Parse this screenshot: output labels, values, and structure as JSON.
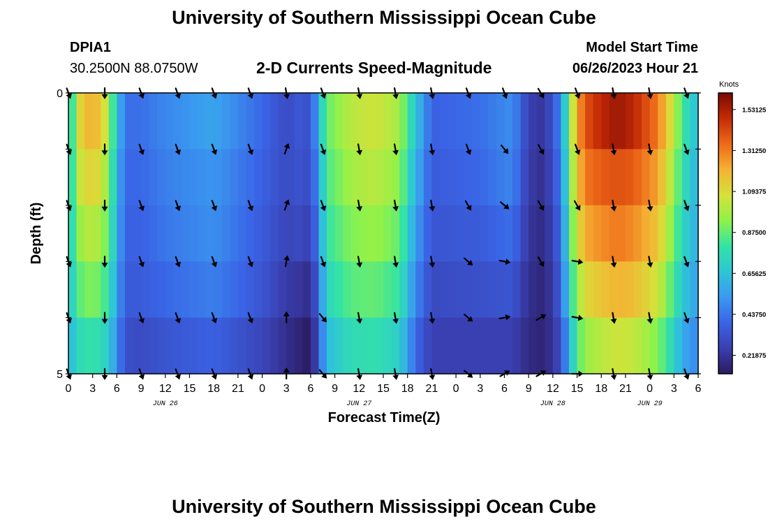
{
  "header": {
    "title": "University of Southern Mississippi Ocean Cube",
    "station": "DPIA1",
    "coords": "30.2500N  88.0750W",
    "subtitle": "2-D Currents Speed-Magnitude",
    "model_label": "Model Start Time",
    "model_time": "06/26/2023 Hour 21"
  },
  "footer": {
    "title": "University of Southern Mississippi Ocean Cube"
  },
  "colors": {
    "palette": [
      "#2a1a5e",
      "#3a3fb0",
      "#3a64e6",
      "#3a9af0",
      "#2ec6d6",
      "#33e3a5",
      "#8ef24a",
      "#d6e13a",
      "#f5b233",
      "#ee6a1a",
      "#c52b06",
      "#7a0a03"
    ],
    "arrow": "#000000"
  },
  "chart_data": {
    "type": "heatmap",
    "title": "2-D Currents Speed-Magnitude",
    "xlabel": "Forecast Time(Z)",
    "ylabel": "Depth (ft)",
    "colorbar_label": "Knots",
    "colorbar_ticks": [
      "1.53125",
      "1.31250",
      "1.09375",
      "0.87500",
      "0.65625",
      "0.43750",
      "0.21875"
    ],
    "colorbar_range": [
      0.12,
      1.62
    ],
    "y_ticks": [
      "0",
      "5"
    ],
    "y_range": [
      0,
      5
    ],
    "x_ticks": [
      "0",
      "3",
      "6",
      "9",
      "12",
      "15",
      "18",
      "21",
      "0",
      "3",
      "6",
      "9",
      "12",
      "15",
      "18",
      "21",
      "0",
      "3",
      "6",
      "9",
      "12",
      "15",
      "18",
      "21",
      "0",
      "3",
      "6"
    ],
    "date_labels": [
      "JUN 26",
      "JUN 27",
      "JUN 28",
      "JUN 29"
    ],
    "time_range_hours": [
      0,
      78
    ],
    "depth_rows": 5,
    "speed_profile": [
      {
        "hour": 0,
        "speed": [
          0.6,
          0.62,
          0.64,
          0.62,
          0.58
        ]
      },
      {
        "hour": 1,
        "speed": [
          1.05,
          1.0,
          0.92,
          0.84,
          0.74
        ]
      },
      {
        "hour": 2,
        "speed": [
          1.18,
          1.1,
          1.0,
          0.9,
          0.78
        ]
      },
      {
        "hour": 3,
        "speed": [
          1.2,
          1.12,
          1.02,
          0.92,
          0.8
        ]
      },
      {
        "hour": 4,
        "speed": [
          1.16,
          1.08,
          0.98,
          0.88,
          0.76
        ]
      },
      {
        "hour": 5,
        "speed": [
          0.98,
          0.92,
          0.86,
          0.78,
          0.68
        ]
      },
      {
        "hour": 6,
        "speed": [
          0.66,
          0.62,
          0.6,
          0.56,
          0.5
        ]
      },
      {
        "hour": 7,
        "speed": [
          0.42,
          0.4,
          0.38,
          0.36,
          0.32
        ]
      },
      {
        "hour": 9,
        "speed": [
          0.42,
          0.4,
          0.38,
          0.36,
          0.3
        ]
      },
      {
        "hour": 12,
        "speed": [
          0.48,
          0.46,
          0.44,
          0.4,
          0.34
        ]
      },
      {
        "hour": 18,
        "speed": [
          0.56,
          0.52,
          0.5,
          0.46,
          0.38
        ]
      },
      {
        "hour": 24,
        "speed": [
          0.4,
          0.38,
          0.36,
          0.34,
          0.28
        ]
      },
      {
        "hour": 27,
        "speed": [
          0.3,
          0.3,
          0.28,
          0.24,
          0.2
        ]
      },
      {
        "hour": 29,
        "speed": [
          0.36,
          0.34,
          0.3,
          0.22,
          0.15
        ]
      },
      {
        "hour": 30,
        "speed": [
          0.3,
          0.28,
          0.24,
          0.18,
          0.12
        ]
      },
      {
        "hour": 31,
        "speed": [
          0.62,
          0.56,
          0.5,
          0.42,
          0.34
        ]
      },
      {
        "hour": 32,
        "speed": [
          0.88,
          0.84,
          0.8,
          0.74,
          0.64
        ]
      },
      {
        "hour": 35,
        "speed": [
          1.02,
          0.98,
          0.92,
          0.86,
          0.76
        ]
      },
      {
        "hour": 38,
        "speed": [
          1.06,
          1.02,
          0.96,
          0.88,
          0.78
        ]
      },
      {
        "hour": 41,
        "speed": [
          0.98,
          0.94,
          0.88,
          0.8,
          0.7
        ]
      },
      {
        "hour": 43,
        "speed": [
          0.66,
          0.6,
          0.54,
          0.48,
          0.4
        ]
      },
      {
        "hour": 45,
        "speed": [
          0.38,
          0.36,
          0.34,
          0.3,
          0.26
        ]
      },
      {
        "hour": 51,
        "speed": [
          0.42,
          0.4,
          0.36,
          0.32,
          0.26
        ]
      },
      {
        "hour": 55,
        "speed": [
          0.5,
          0.48,
          0.42,
          0.34,
          0.26
        ]
      },
      {
        "hour": 57,
        "speed": [
          0.26,
          0.24,
          0.22,
          0.2,
          0.18
        ]
      },
      {
        "hour": 59,
        "speed": [
          0.22,
          0.2,
          0.18,
          0.16,
          0.16
        ]
      },
      {
        "hour": 61,
        "speed": [
          0.48,
          0.44,
          0.4,
          0.36,
          0.3
        ]
      },
      {
        "hour": 62,
        "speed": [
          0.9,
          0.86,
          0.8,
          0.72,
          0.6
        ]
      },
      {
        "hour": 63,
        "speed": [
          1.22,
          1.15,
          1.06,
          0.96,
          0.84
        ]
      },
      {
        "hour": 64,
        "speed": [
          1.4,
          1.32,
          1.22,
          1.1,
          0.96
        ]
      },
      {
        "hour": 66,
        "speed": [
          1.5,
          1.38,
          1.28,
          1.16,
          1.02
        ]
      },
      {
        "hour": 68,
        "speed": [
          1.56,
          1.4,
          1.32,
          1.2,
          1.06
        ]
      },
      {
        "hour": 70,
        "speed": [
          1.5,
          1.38,
          1.28,
          1.18,
          1.04
        ]
      },
      {
        "hour": 73,
        "speed": [
          1.32,
          1.24,
          1.16,
          1.06,
          0.92
        ]
      },
      {
        "hour": 75,
        "speed": [
          1.02,
          0.96,
          0.9,
          0.82,
          0.72
        ]
      },
      {
        "hour": 76,
        "speed": [
          0.82,
          0.78,
          0.74,
          0.68,
          0.58
        ]
      },
      {
        "hour": 78,
        "speed": [
          0.62,
          0.6,
          0.58,
          0.54,
          0.48
        ]
      }
    ],
    "vector_hours": [
      0,
      4.5,
      9,
      13.5,
      18,
      22.5,
      27,
      31.5,
      36,
      40.5,
      45,
      49.5,
      54,
      58.5,
      63,
      67.5,
      72,
      76.5
    ],
    "vector_rows": [
      0,
      1,
      2,
      3,
      4,
      5
    ],
    "vector_directions_deg": [
      [
        160,
        180,
        160,
        160,
        160,
        160,
        170,
        160,
        170,
        170,
        170,
        160,
        160,
        150,
        160,
        170,
        170,
        160
      ],
      [
        160,
        180,
        160,
        160,
        160,
        160,
        20,
        160,
        170,
        170,
        170,
        160,
        140,
        150,
        160,
        170,
        170,
        160
      ],
      [
        160,
        180,
        160,
        160,
        160,
        160,
        20,
        160,
        170,
        170,
        170,
        150,
        130,
        150,
        150,
        170,
        170,
        160
      ],
      [
        160,
        180,
        160,
        160,
        160,
        160,
        10,
        160,
        170,
        170,
        170,
        130,
        100,
        150,
        100,
        170,
        170,
        160
      ],
      [
        160,
        180,
        160,
        160,
        160,
        160,
        0,
        140,
        170,
        170,
        170,
        130,
        80,
        60,
        100,
        170,
        170,
        160
      ],
      [
        160,
        180,
        160,
        160,
        160,
        160,
        0,
        140,
        170,
        170,
        170,
        130,
        60,
        60,
        90,
        170,
        170,
        160
      ]
    ]
  }
}
